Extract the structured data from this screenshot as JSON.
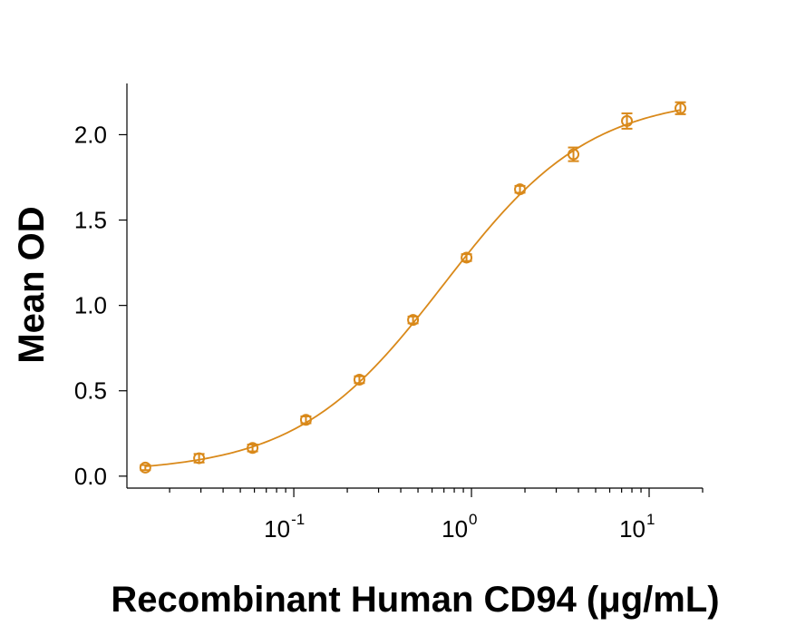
{
  "chart_data": {
    "type": "scatter",
    "title": "",
    "xlabel": "Recombinant Human CD94 (μg/mL)",
    "ylabel": "Mean OD",
    "x_scale": "log",
    "xlim": [
      0.0115,
      20
    ],
    "ylim": [
      -0.07,
      2.3
    ],
    "grid": false,
    "legend": "none",
    "colors": {
      "series": "#D9891A",
      "axis": "#000000"
    },
    "x_ticks": [
      {
        "value": 0.1,
        "base": "10",
        "exponent": "-1"
      },
      {
        "value": 1,
        "base": "10",
        "exponent": "0"
      },
      {
        "value": 10,
        "base": "10",
        "exponent": "1"
      }
    ],
    "y_ticks": [
      {
        "value": 0.0,
        "label": "0.0"
      },
      {
        "value": 0.5,
        "label": "0.5"
      },
      {
        "value": 1.0,
        "label": "1.0"
      },
      {
        "value": 1.5,
        "label": "1.5"
      },
      {
        "value": 2.0,
        "label": "2.0"
      }
    ],
    "series": [
      {
        "x": [
          0.0146,
          0.0293,
          0.0586,
          0.117,
          0.234,
          0.469,
          0.938,
          1.875,
          3.75,
          7.5,
          15
        ],
        "y": [
          0.05,
          0.105,
          0.165,
          0.33,
          0.565,
          0.915,
          1.28,
          1.68,
          1.885,
          2.08,
          2.155
        ],
        "error": [
          0.015,
          0.025,
          0.02,
          0.02,
          0.02,
          0.02,
          0.02,
          0.02,
          0.04,
          0.045,
          0.035
        ],
        "fit": "4PL"
      }
    ]
  }
}
